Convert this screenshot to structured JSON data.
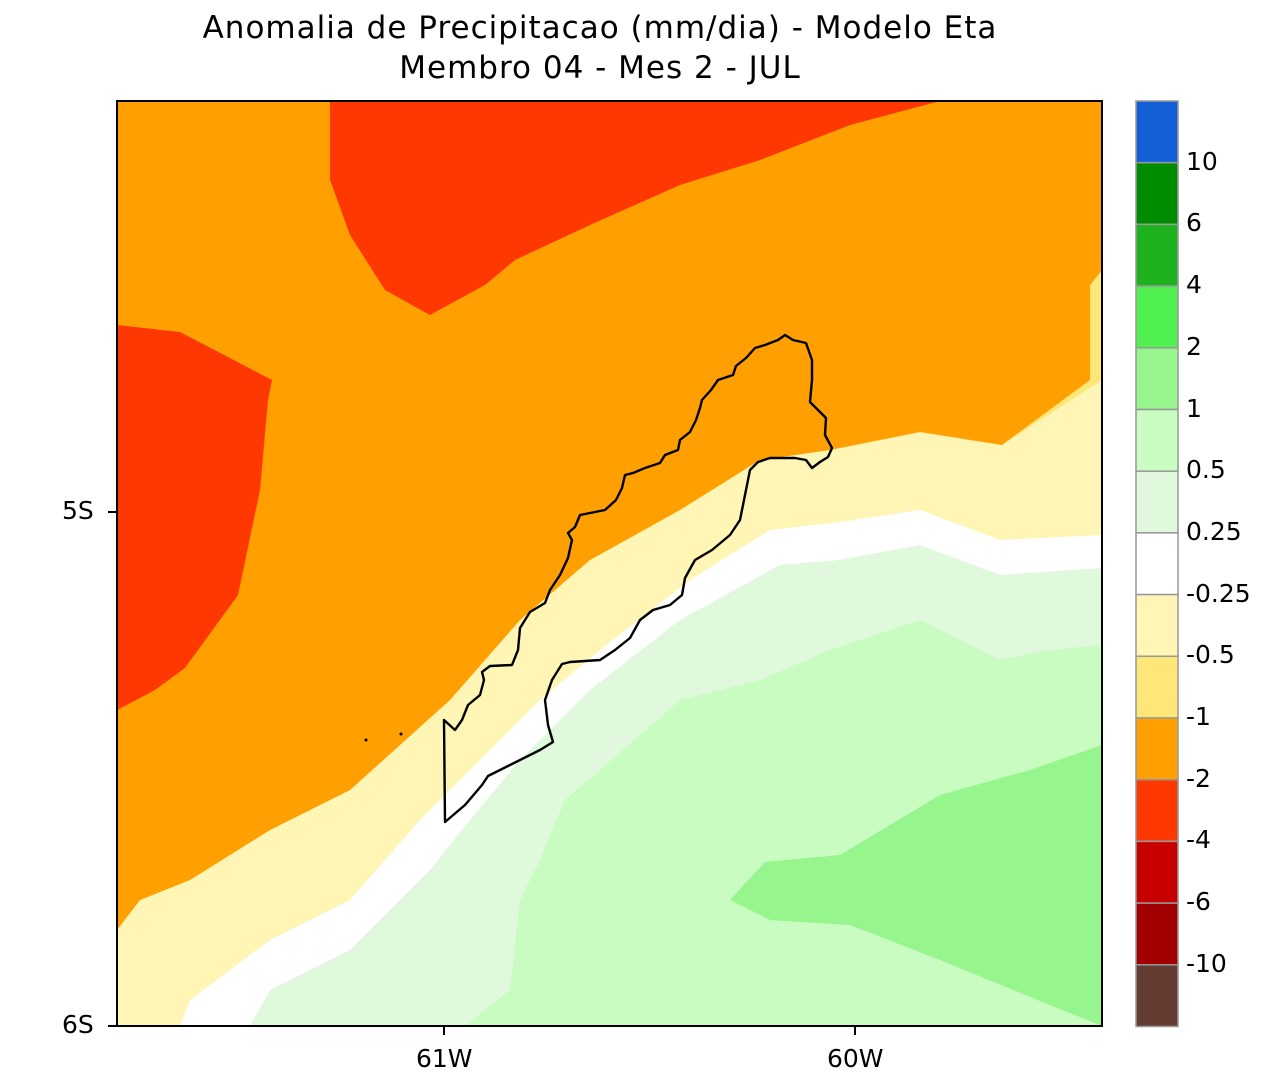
{
  "title_line1": "Anomalia de Precipitacao (mm/dia) - Modelo Eta",
  "title_line2": "Membro 04 - Mes 2 - JUL",
  "axes": {
    "y_ticks": [
      "5S",
      "6S"
    ],
    "x_ticks": [
      "61W",
      "60W"
    ]
  },
  "colorbar": {
    "labels": [
      "10",
      "6",
      "4",
      "2",
      "1",
      "0.5",
      "0.25",
      "-0.25",
      "-0.5",
      "-1",
      "-2",
      "-4",
      "-6",
      "-10"
    ],
    "colors": [
      "#1560d6",
      "#008c00",
      "#1eb21e",
      "#50f050",
      "#96f58c",
      "#c8fcc0",
      "#e0f8dc",
      "#ffffff",
      "#fff5b4",
      "#ffe678",
      "#ffa000",
      "#ff3700",
      "#c80000",
      "#a00000",
      "#643c32"
    ]
  },
  "map_colors": {
    "red": "#ff3700",
    "orange": "#ffa000",
    "yellow": "#ffe678",
    "light_yellow": "#fff5b4",
    "white": "#ffffff",
    "very_light_green": "#e0f8dc",
    "light_green": "#c8fcc0",
    "green": "#96f58c"
  }
}
